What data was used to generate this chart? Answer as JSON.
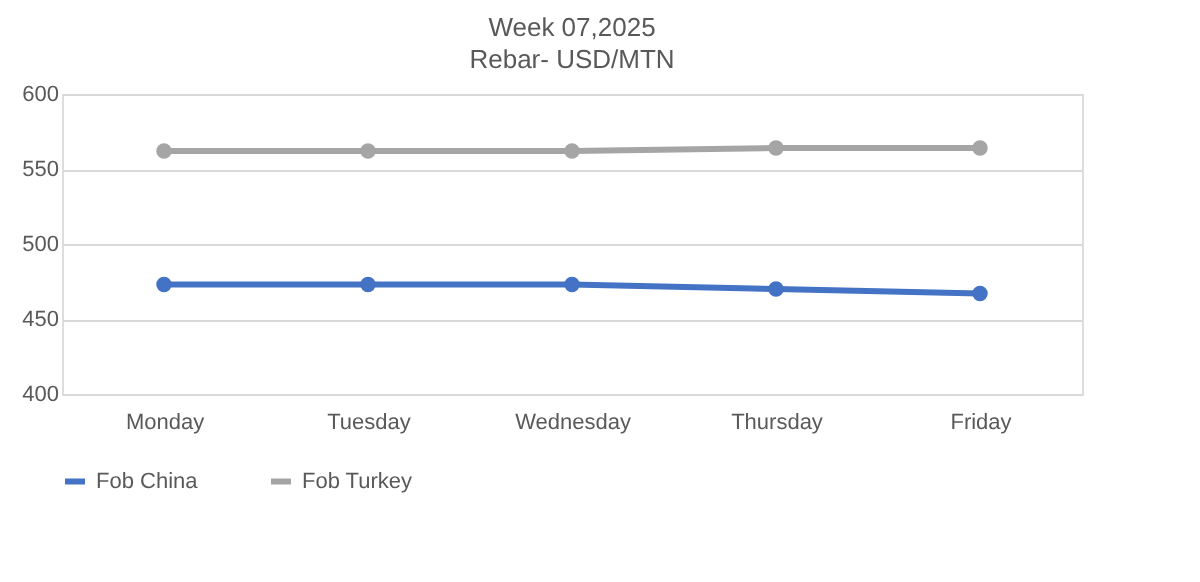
{
  "chart_data": {
    "type": "line",
    "title": "Week 07,2025",
    "subtitle": "Rebar- USD/MTN",
    "categories": [
      "Monday",
      "Tuesday",
      "Wednesday",
      "Thursday",
      "Friday"
    ],
    "series": [
      {
        "name": "Fob China",
        "color": "#4472c4",
        "values": [
          473,
          473,
          473,
          470,
          467
        ]
      },
      {
        "name": "Fob Turkey",
        "color": "#a5a5a5",
        "values": [
          562,
          562,
          562,
          564,
          564
        ]
      }
    ],
    "ylim": [
      400,
      600
    ],
    "yticks": [
      400,
      450,
      500,
      550,
      600
    ],
    "grid": "y",
    "legend": "bottom",
    "marker": "circle",
    "line_style": "solid"
  }
}
